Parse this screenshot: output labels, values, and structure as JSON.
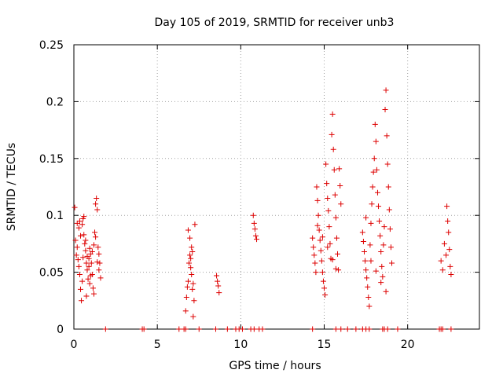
{
  "chart_data": {
    "type": "scatter",
    "title": "Day 105 of 2019, SRMTID for receiver unb3",
    "xlabel": "GPS time / hours",
    "ylabel": "SRMTID / TECUs",
    "xlim": [
      0,
      24.3
    ],
    "ylim": [
      0,
      0.25
    ],
    "x_ticks": [
      0,
      5,
      10,
      15,
      20
    ],
    "x_tick_labels": [
      "0",
      "5",
      "10",
      "15",
      "20"
    ],
    "y_ticks": [
      0,
      0.05,
      0.1,
      0.15,
      0.2,
      0.25
    ],
    "y_tick_labels": [
      "0",
      "0.05",
      "0.1",
      "0.15",
      "0.2",
      "0.25"
    ],
    "grid": true,
    "marker": "plus",
    "color": "#dd0000",
    "series": [
      {
        "name": "SRMTID",
        "points": [
          [
            0.05,
            0.107
          ],
          [
            0.1,
            0.078
          ],
          [
            0.15,
            0.065
          ],
          [
            0.2,
            0.072
          ],
          [
            0.25,
            0.061
          ],
          [
            0.3,
            0.055
          ],
          [
            0.35,
            0.048
          ],
          [
            0.4,
            0.035
          ],
          [
            0.45,
            0.025
          ],
          [
            0.5,
            0.042
          ],
          [
            0.55,
            0.097
          ],
          [
            0.6,
            0.083
          ],
          [
            0.65,
            0.075
          ],
          [
            0.7,
            0.069
          ],
          [
            0.75,
            0.058
          ],
          [
            0.8,
            0.052
          ],
          [
            0.85,
            0.044
          ],
          [
            0.9,
            0.062
          ],
          [
            0.95,
            0.071
          ],
          [
            1.0,
            0.066
          ],
          [
            1.05,
            0.058
          ],
          [
            1.1,
            0.048
          ],
          [
            1.15,
            0.036
          ],
          [
            1.2,
            0.031
          ],
          [
            1.25,
            0.085
          ],
          [
            1.3,
            0.11
          ],
          [
            1.35,
            0.115
          ],
          [
            1.4,
            0.105
          ],
          [
            1.45,
            0.072
          ],
          [
            1.5,
            0.066
          ],
          [
            1.55,
            0.058
          ],
          [
            1.6,
            0.045
          ],
          [
            0.3,
            0.089
          ],
          [
            0.4,
            0.082
          ],
          [
            0.5,
            0.092
          ],
          [
            0.6,
            0.099
          ],
          [
            0.7,
            0.078
          ],
          [
            0.8,
            0.064
          ],
          [
            0.9,
            0.055
          ],
          [
            1.0,
            0.047
          ],
          [
            1.1,
            0.068
          ],
          [
            1.2,
            0.074
          ],
          [
            1.3,
            0.081
          ],
          [
            1.4,
            0.059
          ],
          [
            1.5,
            0.052
          ],
          [
            0.2,
            0.093
          ],
          [
            0.35,
            0.095
          ],
          [
            0.55,
            0.063
          ],
          [
            0.75,
            0.029
          ],
          [
            0.95,
            0.04
          ],
          [
            6.7,
            0.016
          ],
          [
            6.75,
            0.028
          ],
          [
            6.8,
            0.037
          ],
          [
            6.85,
            0.042
          ],
          [
            6.9,
            0.058
          ],
          [
            6.95,
            0.065
          ],
          [
            7.0,
            0.062
          ],
          [
            7.05,
            0.048
          ],
          [
            7.1,
            0.035
          ],
          [
            7.15,
            0.011
          ],
          [
            7.2,
            0.025
          ],
          [
            6.85,
            0.087
          ],
          [
            6.95,
            0.08
          ],
          [
            7.05,
            0.072
          ],
          [
            7.15,
            0.04
          ],
          [
            7.25,
            0.092
          ],
          [
            7.0,
            0.054
          ],
          [
            7.1,
            0.068
          ],
          [
            8.55,
            0.047
          ],
          [
            8.6,
            0.042
          ],
          [
            8.65,
            0.038
          ],
          [
            8.7,
            0.032
          ],
          [
            10.75,
            0.1
          ],
          [
            10.8,
            0.093
          ],
          [
            10.85,
            0.088
          ],
          [
            10.9,
            0.082
          ],
          [
            10.95,
            0.079
          ],
          [
            14.3,
            0.08
          ],
          [
            14.35,
            0.072
          ],
          [
            14.4,
            0.065
          ],
          [
            14.45,
            0.058
          ],
          [
            14.5,
            0.05
          ],
          [
            14.55,
            0.125
          ],
          [
            14.6,
            0.113
          ],
          [
            14.65,
            0.1
          ],
          [
            14.7,
            0.087
          ],
          [
            14.75,
            0.078
          ],
          [
            14.8,
            0.069
          ],
          [
            14.85,
            0.06
          ],
          [
            14.9,
            0.05
          ],
          [
            14.95,
            0.042
          ],
          [
            15.0,
            0.036
          ],
          [
            15.05,
            0.03
          ],
          [
            15.1,
            0.145
          ],
          [
            15.15,
            0.128
          ],
          [
            15.2,
            0.115
          ],
          [
            15.25,
            0.104
          ],
          [
            15.3,
            0.09
          ],
          [
            15.35,
            0.075
          ],
          [
            15.4,
            0.062
          ],
          [
            15.45,
            0.171
          ],
          [
            15.5,
            0.189
          ],
          [
            15.55,
            0.158
          ],
          [
            15.6,
            0.14
          ],
          [
            15.65,
            0.118
          ],
          [
            15.7,
            0.098
          ],
          [
            15.75,
            0.08
          ],
          [
            15.8,
            0.066
          ],
          [
            15.85,
            0.052
          ],
          [
            15.9,
            0.141
          ],
          [
            15.95,
            0.126
          ],
          [
            16.0,
            0.11
          ],
          [
            14.6,
            0.091
          ],
          [
            14.9,
            0.081
          ],
          [
            15.2,
            0.072
          ],
          [
            15.5,
            0.061
          ],
          [
            15.7,
            0.053
          ],
          [
            17.3,
            0.085
          ],
          [
            17.35,
            0.077
          ],
          [
            17.4,
            0.068
          ],
          [
            17.45,
            0.06
          ],
          [
            17.5,
            0.052
          ],
          [
            17.55,
            0.045
          ],
          [
            17.6,
            0.037
          ],
          [
            17.65,
            0.028
          ],
          [
            17.7,
            0.02
          ],
          [
            17.75,
            0.074
          ],
          [
            17.8,
            0.093
          ],
          [
            17.85,
            0.11
          ],
          [
            17.9,
            0.125
          ],
          [
            17.95,
            0.138
          ],
          [
            18.0,
            0.15
          ],
          [
            18.05,
            0.18
          ],
          [
            18.1,
            0.165
          ],
          [
            18.15,
            0.14
          ],
          [
            18.2,
            0.12
          ],
          [
            18.25,
            0.108
          ],
          [
            18.3,
            0.095
          ],
          [
            18.35,
            0.082
          ],
          [
            18.4,
            0.068
          ],
          [
            18.45,
            0.055
          ],
          [
            18.5,
            0.046
          ],
          [
            18.55,
            0.074
          ],
          [
            18.6,
            0.09
          ],
          [
            18.65,
            0.193
          ],
          [
            18.7,
            0.21
          ],
          [
            18.75,
            0.17
          ],
          [
            18.8,
            0.145
          ],
          [
            18.85,
            0.125
          ],
          [
            18.9,
            0.105
          ],
          [
            18.95,
            0.088
          ],
          [
            19.0,
            0.072
          ],
          [
            19.05,
            0.058
          ],
          [
            17.5,
            0.098
          ],
          [
            17.8,
            0.06
          ],
          [
            18.1,
            0.051
          ],
          [
            18.4,
            0.041
          ],
          [
            18.7,
            0.033
          ],
          [
            22.0,
            0.06
          ],
          [
            22.1,
            0.052
          ],
          [
            22.2,
            0.075
          ],
          [
            22.3,
            0.065
          ],
          [
            22.35,
            0.108
          ],
          [
            22.4,
            0.095
          ],
          [
            22.45,
            0.085
          ],
          [
            22.5,
            0.07
          ],
          [
            22.55,
            0.055
          ],
          [
            22.6,
            0.048
          ]
        ]
      },
      {
        "name": "zero-level",
        "x": [
          1.9,
          4.1,
          4.2,
          6.3,
          6.6,
          6.7,
          7.5,
          8.5,
          9.2,
          9.7,
          9.9,
          10.1,
          10.6,
          10.8,
          11.1,
          11.3,
          14.3,
          15.7,
          16.0,
          16.4,
          16.9,
          17.3,
          17.5,
          17.7,
          18.5,
          18.6,
          18.8,
          19.4,
          21.9,
          22.0,
          22.1,
          22.6
        ],
        "y": 0
      }
    ]
  }
}
